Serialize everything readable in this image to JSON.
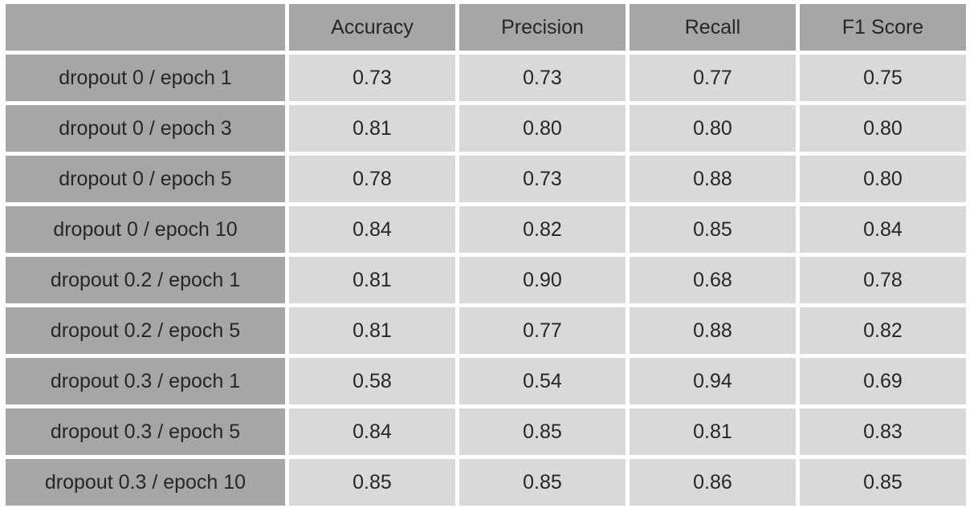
{
  "colors": {
    "header_bg": "#a6a6a6",
    "label_bg": "#a6a6a6",
    "cell_bg": "#d9d9d9",
    "gap": "#ffffff",
    "text": "#262626"
  },
  "chart_data": {
    "type": "table",
    "title": "",
    "columns": [
      "",
      "Accuracy",
      "Precision",
      "Recall",
      "F1 Score"
    ],
    "rows": [
      {
        "label": "dropout 0 / epoch 1",
        "values": [
          "0.73",
          "0.73",
          "0.77",
          "0.75"
        ]
      },
      {
        "label": "dropout 0 / epoch 3",
        "values": [
          "0.81",
          "0.80",
          "0.80",
          "0.80"
        ]
      },
      {
        "label": "dropout 0 / epoch 5",
        "values": [
          "0.78",
          "0.73",
          "0.88",
          "0.80"
        ]
      },
      {
        "label": "dropout 0 / epoch 10",
        "values": [
          "0.84",
          "0.82",
          "0.85",
          "0.84"
        ]
      },
      {
        "label": "dropout 0.2 / epoch 1",
        "values": [
          "0.81",
          "0.90",
          "0.68",
          "0.78"
        ]
      },
      {
        "label": "dropout 0.2 / epoch 5",
        "values": [
          "0.81",
          "0.77",
          "0.88",
          "0.82"
        ]
      },
      {
        "label": "dropout 0.3 / epoch 1",
        "values": [
          "0.58",
          "0.54",
          "0.94",
          "0.69"
        ]
      },
      {
        "label": "dropout 0.3 / epoch 5",
        "values": [
          "0.84",
          "0.85",
          "0.81",
          "0.83"
        ]
      },
      {
        "label": "dropout 0.3 / epoch 10",
        "values": [
          "0.85",
          "0.85",
          "0.86",
          "0.85"
        ]
      }
    ]
  }
}
